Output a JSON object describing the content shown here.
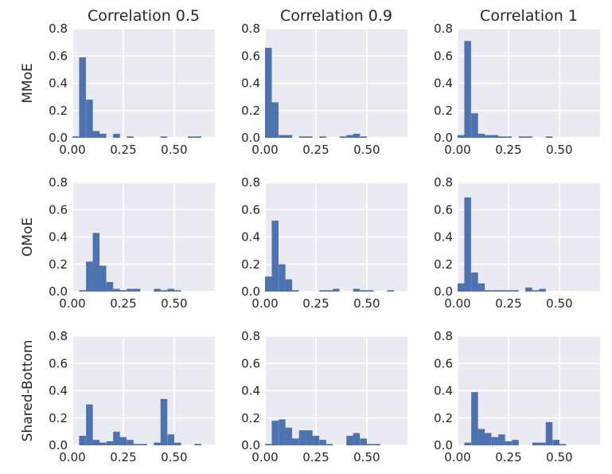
{
  "chart_data": {
    "type": "bar",
    "figure_kind": "histogram-grid",
    "column_titles": [
      "Correlation 0.5",
      "Correlation 0.9",
      "Correlation 1"
    ],
    "row_labels": [
      "MMoE",
      "OMoE",
      "Shared-Bottom"
    ],
    "xlim": [
      0,
      0.7
    ],
    "ylim": [
      0,
      0.8
    ],
    "x_ticks": [
      "0.00",
      "0.25",
      "0.50"
    ],
    "y_ticks": [
      "0.0",
      "0.2",
      "0.4",
      "0.6",
      "0.8"
    ],
    "bin_width": 0.0333,
    "grid": true,
    "bar_color": "#4c72b0",
    "background_color": "#eaeaf2",
    "panels": [
      [
        {
          "row": "MMoE",
          "column": "Correlation 0.5",
          "bins": [
            {
              "x": 0.0,
              "y": 0.01
            },
            {
              "x": 0.033,
              "y": 0.59
            },
            {
              "x": 0.067,
              "y": 0.28
            },
            {
              "x": 0.1,
              "y": 0.05
            },
            {
              "x": 0.133,
              "y": 0.03
            },
            {
              "x": 0.2,
              "y": 0.03
            },
            {
              "x": 0.267,
              "y": 0.01
            },
            {
              "x": 0.433,
              "y": 0.01
            },
            {
              "x": 0.567,
              "y": 0.01
            },
            {
              "x": 0.6,
              "y": 0.01
            }
          ]
        },
        {
          "row": "MMoE",
          "column": "Correlation 0.9",
          "bins": [
            {
              "x": 0.0,
              "y": 0.66
            },
            {
              "x": 0.033,
              "y": 0.26
            },
            {
              "x": 0.067,
              "y": 0.02
            },
            {
              "x": 0.1,
              "y": 0.02
            },
            {
              "x": 0.167,
              "y": 0.01
            },
            {
              "x": 0.2,
              "y": 0.01
            },
            {
              "x": 0.267,
              "y": 0.01
            },
            {
              "x": 0.367,
              "y": 0.01
            },
            {
              "x": 0.4,
              "y": 0.02
            },
            {
              "x": 0.433,
              "y": 0.03
            },
            {
              "x": 0.467,
              "y": 0.01
            }
          ]
        },
        {
          "row": "MMoE",
          "column": "Correlation 1",
          "bins": [
            {
              "x": 0.0,
              "y": 0.02
            },
            {
              "x": 0.033,
              "y": 0.71
            },
            {
              "x": 0.067,
              "y": 0.18
            },
            {
              "x": 0.1,
              "y": 0.03
            },
            {
              "x": 0.133,
              "y": 0.02
            },
            {
              "x": 0.167,
              "y": 0.02
            },
            {
              "x": 0.2,
              "y": 0.01
            },
            {
              "x": 0.233,
              "y": 0.01
            },
            {
              "x": 0.3,
              "y": 0.01
            },
            {
              "x": 0.333,
              "y": 0.01
            },
            {
              "x": 0.433,
              "y": 0.01
            }
          ]
        }
      ],
      [
        {
          "row": "OMoE",
          "column": "Correlation 0.5",
          "bins": [
            {
              "x": 0.033,
              "y": 0.01
            },
            {
              "x": 0.067,
              "y": 0.22
            },
            {
              "x": 0.1,
              "y": 0.43
            },
            {
              "x": 0.133,
              "y": 0.19
            },
            {
              "x": 0.167,
              "y": 0.07
            },
            {
              "x": 0.2,
              "y": 0.02
            },
            {
              "x": 0.233,
              "y": 0.01
            },
            {
              "x": 0.267,
              "y": 0.02
            },
            {
              "x": 0.3,
              "y": 0.02
            },
            {
              "x": 0.4,
              "y": 0.02
            },
            {
              "x": 0.433,
              "y": 0.01
            },
            {
              "x": 0.467,
              "y": 0.02
            },
            {
              "x": 0.5,
              "y": 0.01
            }
          ]
        },
        {
          "row": "OMoE",
          "column": "Correlation 0.9",
          "bins": [
            {
              "x": 0.0,
              "y": 0.11
            },
            {
              "x": 0.033,
              "y": 0.52
            },
            {
              "x": 0.067,
              "y": 0.2
            },
            {
              "x": 0.1,
              "y": 0.09
            },
            {
              "x": 0.133,
              "y": 0.01
            },
            {
              "x": 0.267,
              "y": 0.01
            },
            {
              "x": 0.3,
              "y": 0.01
            },
            {
              "x": 0.333,
              "y": 0.02
            },
            {
              "x": 0.433,
              "y": 0.02
            },
            {
              "x": 0.467,
              "y": 0.01
            },
            {
              "x": 0.5,
              "y": 0.01
            },
            {
              "x": 0.6,
              "y": 0.01
            }
          ]
        },
        {
          "row": "OMoE",
          "column": "Correlation 1",
          "bins": [
            {
              "x": 0.0,
              "y": 0.06
            },
            {
              "x": 0.033,
              "y": 0.69
            },
            {
              "x": 0.067,
              "y": 0.14
            },
            {
              "x": 0.1,
              "y": 0.06
            },
            {
              "x": 0.133,
              "y": 0.01
            },
            {
              "x": 0.167,
              "y": 0.01
            },
            {
              "x": 0.2,
              "y": 0.01
            },
            {
              "x": 0.233,
              "y": 0.01
            },
            {
              "x": 0.267,
              "y": 0.01
            },
            {
              "x": 0.333,
              "y": 0.03
            },
            {
              "x": 0.367,
              "y": 0.01
            },
            {
              "x": 0.4,
              "y": 0.02
            }
          ]
        }
      ],
      [
        {
          "row": "Shared-Bottom",
          "column": "Correlation 0.5",
          "bins": [
            {
              "x": 0.033,
              "y": 0.07
            },
            {
              "x": 0.067,
              "y": 0.3
            },
            {
              "x": 0.1,
              "y": 0.04
            },
            {
              "x": 0.133,
              "y": 0.02
            },
            {
              "x": 0.167,
              "y": 0.03
            },
            {
              "x": 0.2,
              "y": 0.1
            },
            {
              "x": 0.233,
              "y": 0.06
            },
            {
              "x": 0.267,
              "y": 0.04
            },
            {
              "x": 0.3,
              "y": 0.01
            },
            {
              "x": 0.333,
              "y": 0.01
            },
            {
              "x": 0.4,
              "y": 0.02
            },
            {
              "x": 0.433,
              "y": 0.34
            },
            {
              "x": 0.467,
              "y": 0.08
            },
            {
              "x": 0.5,
              "y": 0.02
            },
            {
              "x": 0.6,
              "y": 0.01
            }
          ]
        },
        {
          "row": "Shared-Bottom",
          "column": "Correlation 0.9",
          "bins": [
            {
              "x": 0.0,
              "y": 0.01
            },
            {
              "x": 0.033,
              "y": 0.18
            },
            {
              "x": 0.067,
              "y": 0.19
            },
            {
              "x": 0.1,
              "y": 0.13
            },
            {
              "x": 0.133,
              "y": 0.05
            },
            {
              "x": 0.167,
              "y": 0.11
            },
            {
              "x": 0.2,
              "y": 0.11
            },
            {
              "x": 0.233,
              "y": 0.07
            },
            {
              "x": 0.267,
              "y": 0.04
            },
            {
              "x": 0.3,
              "y": 0.01
            },
            {
              "x": 0.4,
              "y": 0.07
            },
            {
              "x": 0.433,
              "y": 0.09
            },
            {
              "x": 0.467,
              "y": 0.05
            },
            {
              "x": 0.5,
              "y": 0.01
            },
            {
              "x": 0.533,
              "y": 0.01
            }
          ]
        },
        {
          "row": "Shared-Bottom",
          "column": "Correlation 1",
          "bins": [
            {
              "x": 0.033,
              "y": 0.02
            },
            {
              "x": 0.067,
              "y": 0.39
            },
            {
              "x": 0.1,
              "y": 0.12
            },
            {
              "x": 0.133,
              "y": 0.09
            },
            {
              "x": 0.167,
              "y": 0.06
            },
            {
              "x": 0.2,
              "y": 0.08
            },
            {
              "x": 0.233,
              "y": 0.03
            },
            {
              "x": 0.267,
              "y": 0.04
            },
            {
              "x": 0.367,
              "y": 0.02
            },
            {
              "x": 0.4,
              "y": 0.02
            },
            {
              "x": 0.433,
              "y": 0.17
            },
            {
              "x": 0.467,
              "y": 0.04
            },
            {
              "x": 0.5,
              "y": 0.01
            }
          ]
        }
      ]
    ]
  }
}
